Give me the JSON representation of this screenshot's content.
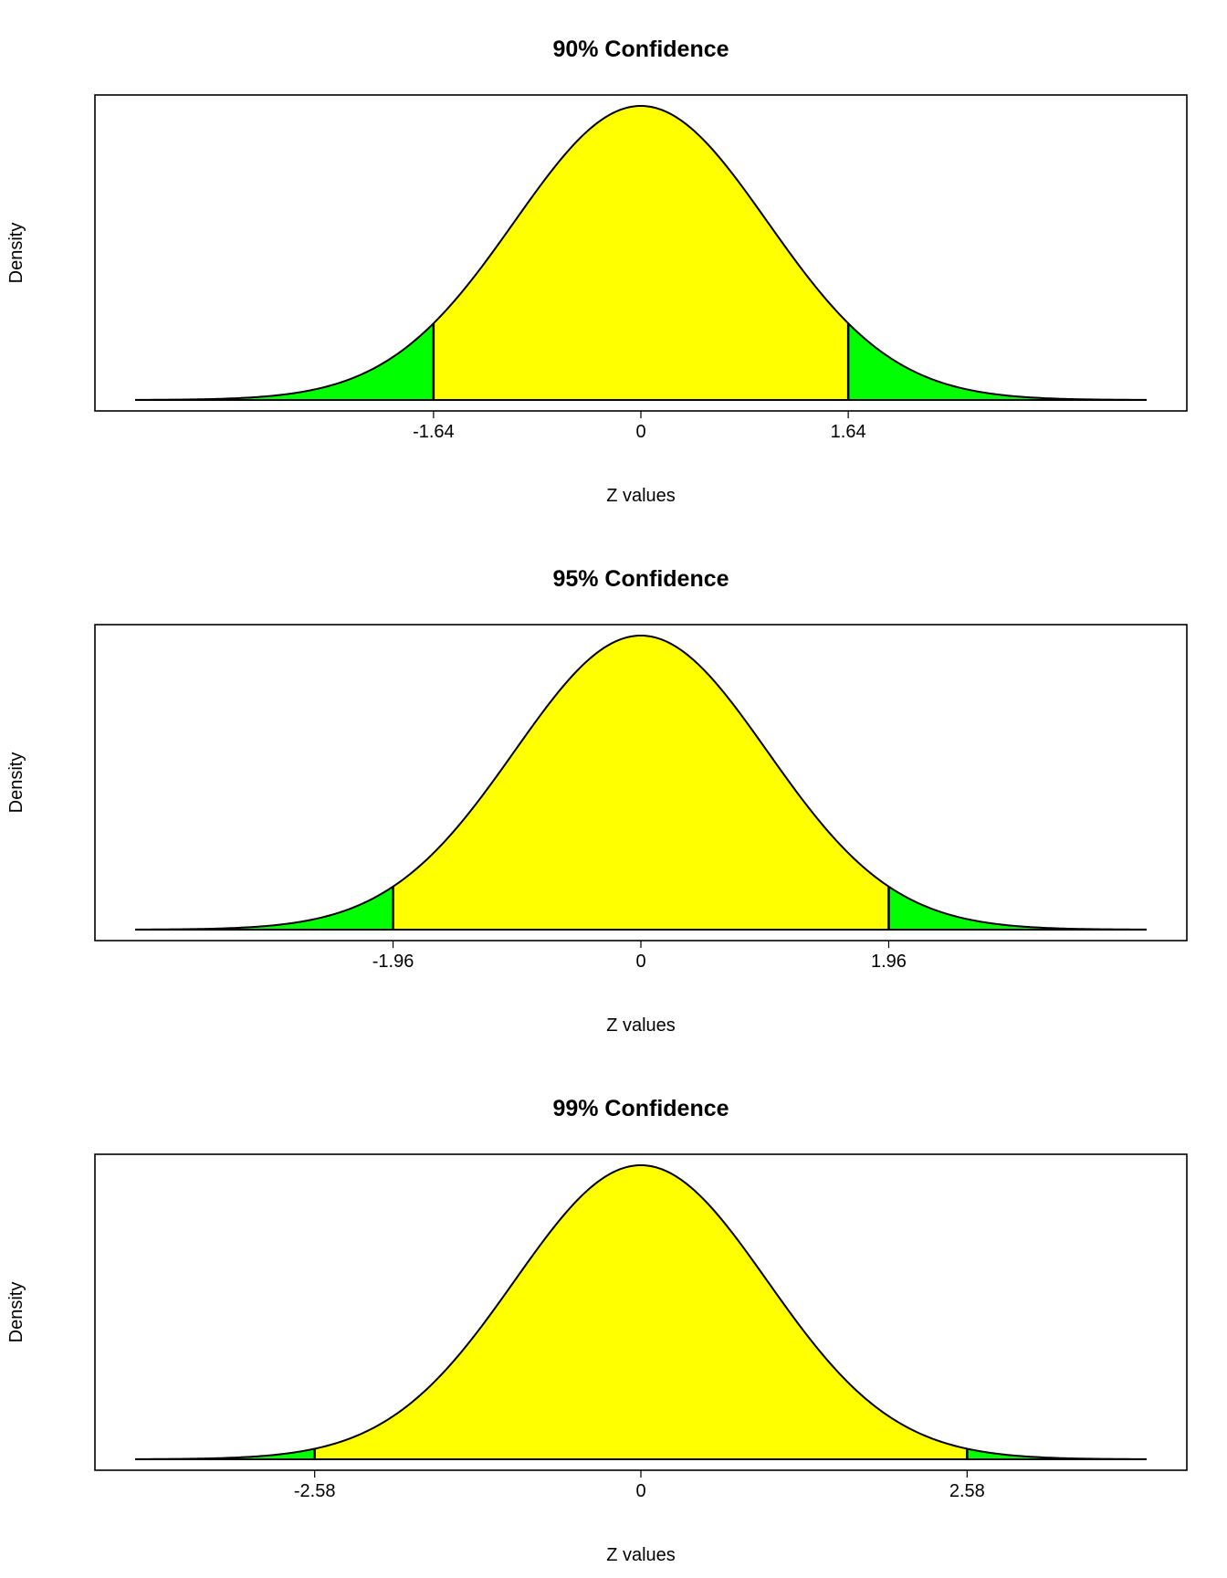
{
  "colors": {
    "center_fill": "#ffff00",
    "tail_fill": "#00ff00",
    "curve": "#000000",
    "frame": "#000000",
    "background": "#ffffff"
  },
  "chart_data": [
    {
      "type": "area",
      "title": "90% Confidence",
      "xlabel": "Z values",
      "ylabel": "Density",
      "distribution": "standard normal",
      "xlim": [
        -4,
        4
      ],
      "critical_values": [
        -1.64,
        1.64
      ],
      "x_ticks": [
        -1.64,
        0,
        1.64
      ],
      "x_tick_labels": [
        "-1.64",
        "0",
        "1.64"
      ],
      "regions": [
        {
          "range": [
            -4,
            -1.64
          ],
          "fill": "tail"
        },
        {
          "range": [
            -1.64,
            1.64
          ],
          "fill": "center"
        },
        {
          "range": [
            1.64,
            4
          ],
          "fill": "tail"
        }
      ],
      "grid": false,
      "legend": "none"
    },
    {
      "type": "area",
      "title": "95% Confidence",
      "xlabel": "Z values",
      "ylabel": "Density",
      "distribution": "standard normal",
      "xlim": [
        -4,
        4
      ],
      "critical_values": [
        -1.96,
        1.96
      ],
      "x_ticks": [
        -1.96,
        0,
        1.96
      ],
      "x_tick_labels": [
        "-1.96",
        "0",
        "1.96"
      ],
      "regions": [
        {
          "range": [
            -4,
            -1.96
          ],
          "fill": "tail"
        },
        {
          "range": [
            -1.96,
            1.96
          ],
          "fill": "center"
        },
        {
          "range": [
            1.96,
            4
          ],
          "fill": "tail"
        }
      ],
      "grid": false,
      "legend": "none"
    },
    {
      "type": "area",
      "title": "99% Confidence",
      "xlabel": "Z values",
      "ylabel": "Density",
      "distribution": "standard normal",
      "xlim": [
        -4,
        4
      ],
      "critical_values": [
        -2.58,
        2.58
      ],
      "x_ticks": [
        -2.58,
        0,
        2.58
      ],
      "x_tick_labels": [
        "-2.58",
        "0",
        "2.58"
      ],
      "regions": [
        {
          "range": [
            -4,
            -2.58
          ],
          "fill": "tail"
        },
        {
          "range": [
            -2.58,
            2.58
          ],
          "fill": "center"
        },
        {
          "range": [
            2.58,
            4
          ],
          "fill": "tail"
        }
      ],
      "grid": false,
      "legend": "none"
    }
  ]
}
